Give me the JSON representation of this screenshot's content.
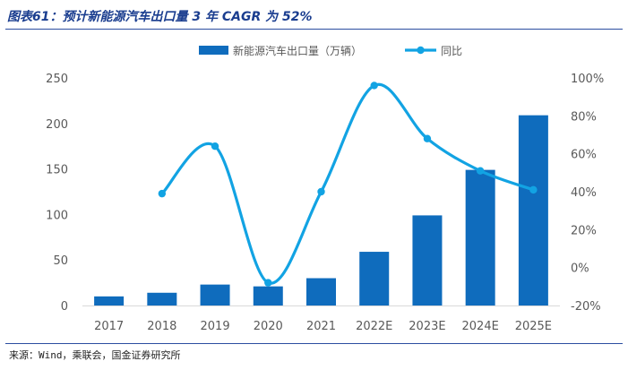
{
  "figure": {
    "title": "图表61：预计新能源汽车出口量 3 年 CAGR 为 52%",
    "source": "来源：Wind，乘联会，国金证券研究所"
  },
  "chart_data": {
    "type": "bar",
    "categories": [
      "2017",
      "2018",
      "2019",
      "2020",
      "2021",
      "2022E",
      "2023E",
      "2024E",
      "2025E"
    ],
    "series": [
      {
        "name": "新能源汽车出口量（万辆）",
        "type": "bar",
        "axis": "left",
        "color": "#0f6cbd",
        "values": [
          10,
          14,
          23,
          21,
          30,
          59,
          99,
          149,
          209
        ]
      },
      {
        "name": "同比",
        "type": "line",
        "axis": "right",
        "color": "#12a3e3",
        "values": [
          null,
          0.39,
          0.64,
          -0.08,
          0.4,
          0.96,
          0.68,
          0.51,
          0.41
        ]
      }
    ],
    "y_left": {
      "min": 0,
      "max": 250,
      "ticks": [
        0,
        50,
        100,
        150,
        200,
        250
      ]
    },
    "y_right": {
      "min": -0.2,
      "max": 1.0,
      "ticks": [
        -0.2,
        0,
        0.2,
        0.4,
        0.6,
        0.8,
        1.0
      ],
      "tick_labels": [
        "-20%",
        "0%",
        "20%",
        "40%",
        "60%",
        "80%",
        "100%"
      ]
    },
    "legend_position": "top-center",
    "grid": false
  }
}
